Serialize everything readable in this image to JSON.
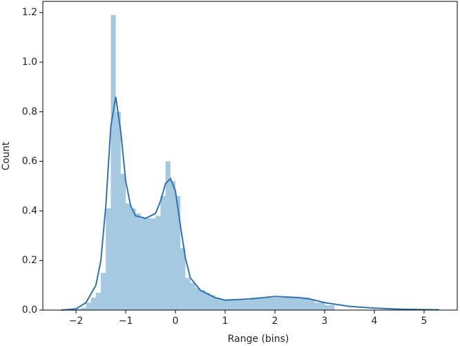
{
  "chart_data": {
    "type": "histogram",
    "xlabel": "Range (bins)",
    "ylabel": "Count",
    "color": "#1f77b4",
    "bins": [
      -2,
      -1.9,
      -1.8,
      -1.7,
      -1.6,
      -1.5,
      -1.4,
      -1.3,
      -1.2,
      -1.1,
      -1,
      -0.9,
      -0.8,
      -0.7,
      -0.6,
      -0.5,
      -0.4,
      -0.3,
      -0.2,
      -0.1,
      0,
      0.1,
      0.2,
      0.3,
      0.4,
      0.5,
      0.6,
      0.7,
      0.8,
      0.9,
      1,
      1.1,
      1.2,
      1.3,
      1.4,
      1.5,
      1.6,
      1.7,
      1.8,
      1.9,
      2,
      2.1,
      2.2,
      2.3,
      2.4,
      2.5,
      2.6,
      2.7,
      2.8,
      2.9,
      3,
      3.1,
      3.2
    ],
    "values": [
      0.005,
      0.01,
      0.03,
      0.05,
      0.07,
      0.15,
      0.41,
      1.19,
      0.8,
      0.55,
      0.43,
      0.41,
      0.39,
      0.37,
      0.37,
      0.37,
      0.38,
      0.46,
      0.6,
      0.52,
      0.46,
      0.25,
      0.13,
      0.11,
      0.09,
      0.08,
      0.07,
      0.06,
      0.05,
      0.04,
      0.04,
      0.04,
      0.04,
      0.04,
      0.04,
      0.05,
      0.05,
      0.05,
      0.05,
      0.05,
      0.05,
      0.05,
      0.05,
      0.05,
      0.05,
      0.05,
      0.05,
      0.04,
      0.03,
      0.03,
      0.02,
      0.02
    ],
    "kde": {
      "color": "#2f72b0",
      "x": [
        -2.3,
        -2,
        -1.8,
        -1.6,
        -1.5,
        -1.4,
        -1.3,
        -1.2,
        -1.1,
        -1,
        -0.9,
        -0.8,
        -0.6,
        -0.4,
        -0.3,
        -0.2,
        -0.1,
        0,
        0.1,
        0.2,
        0.3,
        0.5,
        0.8,
        1,
        1.5,
        2,
        2.5,
        2.7,
        3,
        3.5,
        4,
        4.5,
        5,
        5.3
      ],
      "values": [
        0,
        0.005,
        0.03,
        0.1,
        0.2,
        0.42,
        0.74,
        0.86,
        0.72,
        0.52,
        0.42,
        0.38,
        0.37,
        0.39,
        0.44,
        0.51,
        0.53,
        0.48,
        0.34,
        0.21,
        0.13,
        0.08,
        0.05,
        0.04,
        0.045,
        0.055,
        0.05,
        0.045,
        0.03,
        0.015,
        0.008,
        0.004,
        0.002,
        0.001
      ]
    },
    "xlim": [
      -2.667,
      5.667
    ],
    "ylim": [
      0,
      1.245
    ],
    "xticks": [
      {
        "value": -2,
        "label": "−2"
      },
      {
        "value": -1,
        "label": "−1"
      },
      0,
      1,
      2,
      3,
      4,
      5
    ],
    "yticks": [
      {
        "value": 0,
        "label": "0.0"
      },
      0.2,
      0.4,
      0.6,
      0.8,
      {
        "value": 1,
        "label": "1.0"
      },
      1.2
    ]
  }
}
